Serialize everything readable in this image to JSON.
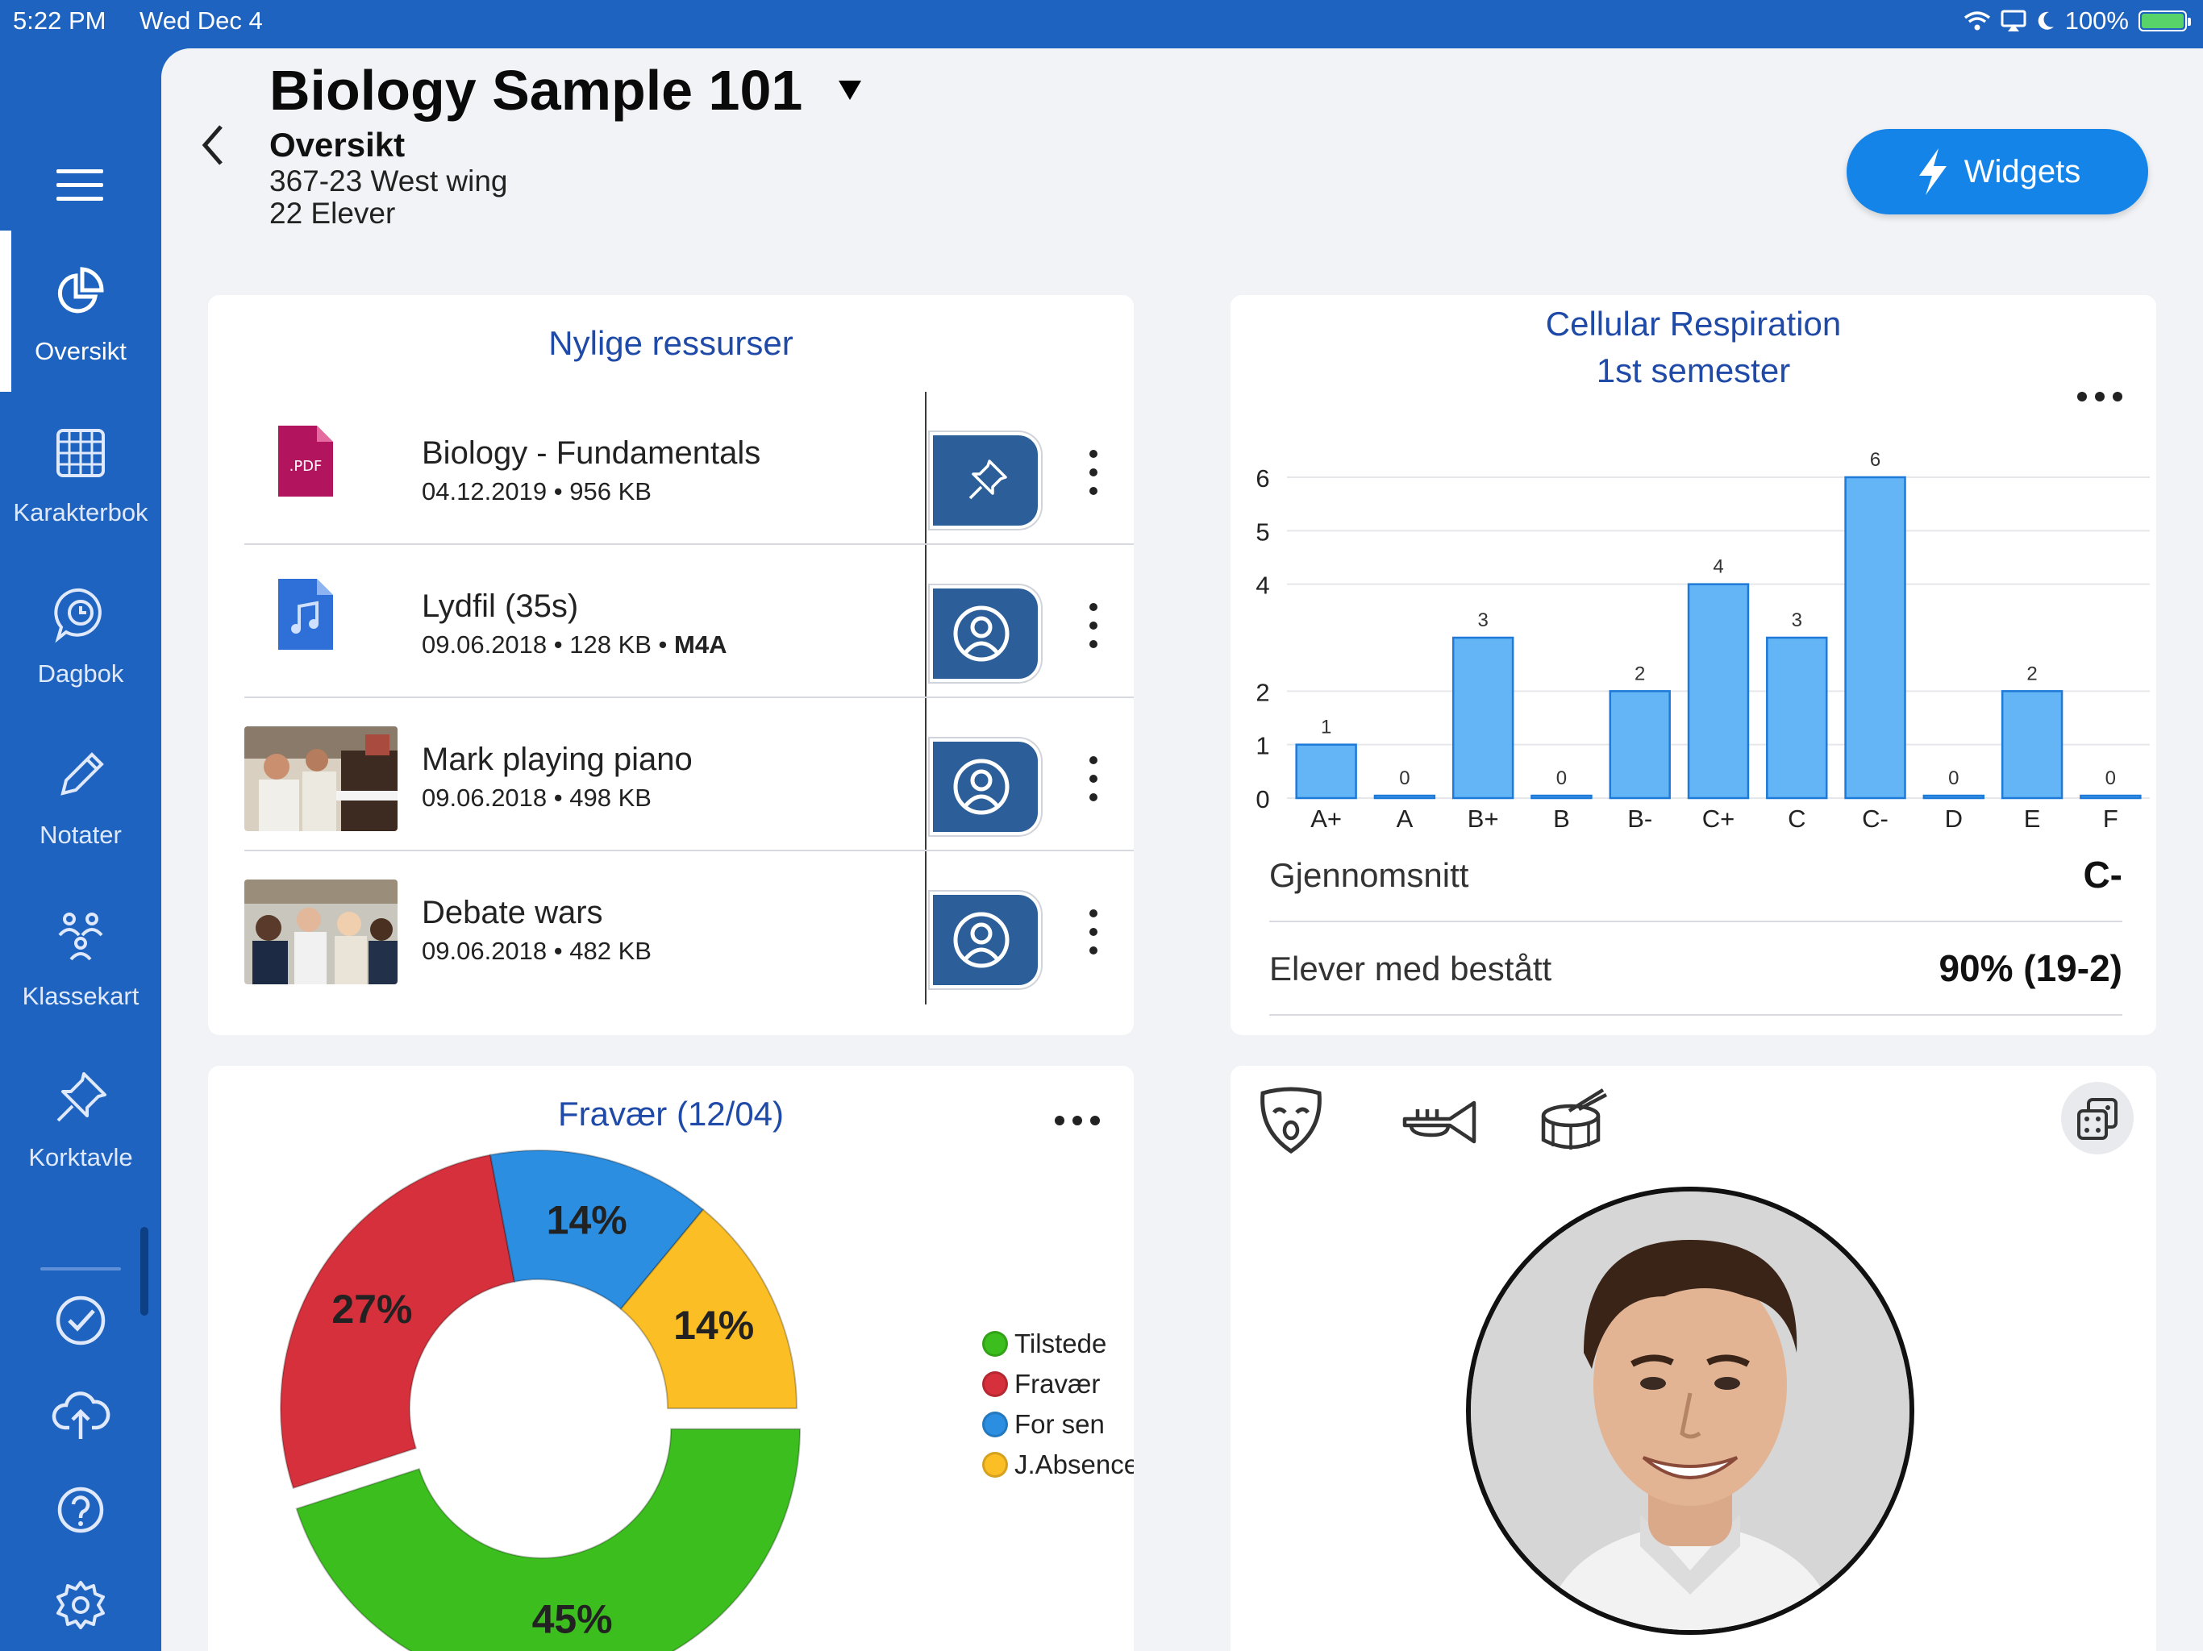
{
  "status": {
    "time": "5:22 PM",
    "date": "Wed Dec 4",
    "battery": "100%"
  },
  "sidebar": {
    "items": [
      {
        "label": "Oversikt",
        "icon": "pie-chart-icon"
      },
      {
        "label": "Karakterbok",
        "icon": "grid-icon"
      },
      {
        "label": "Dagbok",
        "icon": "clock-bubble-icon"
      },
      {
        "label": "Notater",
        "icon": "pencil-icon"
      },
      {
        "label": "Klassekart",
        "icon": "people-icon"
      },
      {
        "label": "Korktavle",
        "icon": "pin-icon"
      }
    ],
    "bottom_icons": [
      "check-circle-icon",
      "cloud-upload-icon",
      "help-icon",
      "settings-icon"
    ]
  },
  "header": {
    "title": "Biology Sample 101",
    "subtitle": "Oversikt",
    "room": "367-23 West wing",
    "students": "22 Elever",
    "widgets_label": "Widgets"
  },
  "resources": {
    "title": "Nylige ressurser",
    "items": [
      {
        "name": "Biology - Fundamentals",
        "meta": "04.12.2019 • 956 KB",
        "meta_bold": "",
        "type": "pdf",
        "type_label": ".PDF",
        "action": "pin-icon"
      },
      {
        "name": "Lydfil (35s)",
        "meta": "09.06.2018 • 128 KB • ",
        "meta_bold": "M4A",
        "type": "audio",
        "action": "user-circle-icon"
      },
      {
        "name": "Mark playing piano",
        "meta": "09.06.2018 • 498 KB",
        "meta_bold": "",
        "type": "image",
        "action": "user-circle-icon"
      },
      {
        "name": "Debate wars",
        "meta": "09.06.2018 • 482 KB",
        "meta_bold": "",
        "type": "image",
        "action": "user-circle-icon"
      }
    ]
  },
  "grades": {
    "title": "Cellular Respiration",
    "subtitle": "1st semester",
    "avg_label": "Gjennomsnitt",
    "avg_value": "C-",
    "pass_label": "Elever med bestått",
    "pass_value": "90% (19-2)"
  },
  "absence": {
    "title": "Fravær (12/04)"
  },
  "chart_data": [
    {
      "type": "bar",
      "title": "Cellular Respiration",
      "subtitle": "1st semester",
      "categories": [
        "A+",
        "A",
        "B+",
        "B",
        "B-",
        "C+",
        "C",
        "C-",
        "D",
        "E",
        "F"
      ],
      "values": [
        1,
        0,
        3,
        0,
        2,
        4,
        3,
        6,
        0,
        2,
        0
      ],
      "yticks": [
        0,
        1,
        2,
        4,
        5,
        6
      ],
      "ylim": [
        0,
        6
      ],
      "grid": true,
      "color": "#64b5f6"
    },
    {
      "type": "pie",
      "title": "Fravær (12/04)",
      "donut": true,
      "slices": [
        {
          "label": "Tilstede",
          "value": 45,
          "text": "45%",
          "color": "#3cbf1e"
        },
        {
          "label": "Fravær",
          "value": 27,
          "text": "27%",
          "color": "#d5303b"
        },
        {
          "label": "For sen",
          "value": 14,
          "text": "14%",
          "color": "#2b8ee0"
        },
        {
          "label": "J.Absence",
          "value": 14,
          "text": "14%",
          "color": "#fbbe24"
        }
      ],
      "legend_position": "right"
    }
  ],
  "sound_icons": [
    "boo-mask-icon",
    "trumpet-icon",
    "drum-icon"
  ],
  "dice_icon": "dice-icon",
  "colors": {
    "accent": "#1e63c0",
    "button": "#1584e8",
    "action": "#2c5e99"
  }
}
